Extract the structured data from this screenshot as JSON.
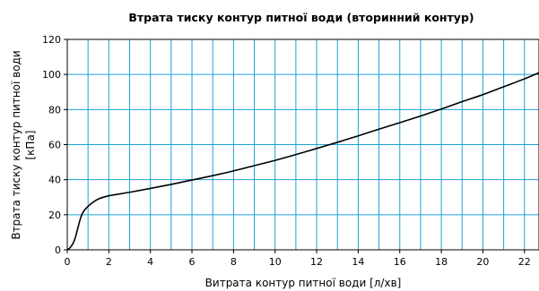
{
  "chart_data": {
    "type": "line",
    "title": "Втрата тиску контур питної води (вторинний контур)",
    "xlabel": "Витрата контур питної води [л/хв]",
    "ylabel_line1": "Втрата тиску контур питної води",
    "ylabel_line2": "[кПа]",
    "xlim": [
      0,
      22.7
    ],
    "ylim": [
      0,
      120
    ],
    "xticks": [
      0,
      2,
      4,
      6,
      8,
      10,
      12,
      14,
      16,
      18,
      20,
      22
    ],
    "yticks": [
      0,
      20,
      40,
      60,
      80,
      100,
      120
    ],
    "x_minor_step": 1,
    "grid": true,
    "grid_color": "#19a3d4",
    "series": [
      {
        "x": [
          0,
          0.1,
          0.2,
          0.3,
          0.4,
          0.5,
          0.6,
          0.7,
          0.8,
          0.9,
          1.0,
          1.2,
          1.5,
          2,
          3,
          4,
          5,
          6,
          7,
          8,
          9,
          10,
          11,
          12,
          13,
          14,
          15,
          16,
          17,
          18,
          19,
          20,
          21,
          22,
          22.7
        ],
        "y": [
          0,
          0.8,
          2.2,
          4.2,
          7.5,
          12,
          16.5,
          20,
          22.2,
          23.6,
          24.8,
          26.8,
          29,
          30.8,
          32.8,
          35,
          37.3,
          39.8,
          42.3,
          45,
          48,
          51,
          54.3,
          57.8,
          61.3,
          65,
          68.8,
          72.5,
          76.3,
          80.3,
          84.5,
          88.5,
          93,
          97.5,
          101
        ]
      }
    ]
  }
}
